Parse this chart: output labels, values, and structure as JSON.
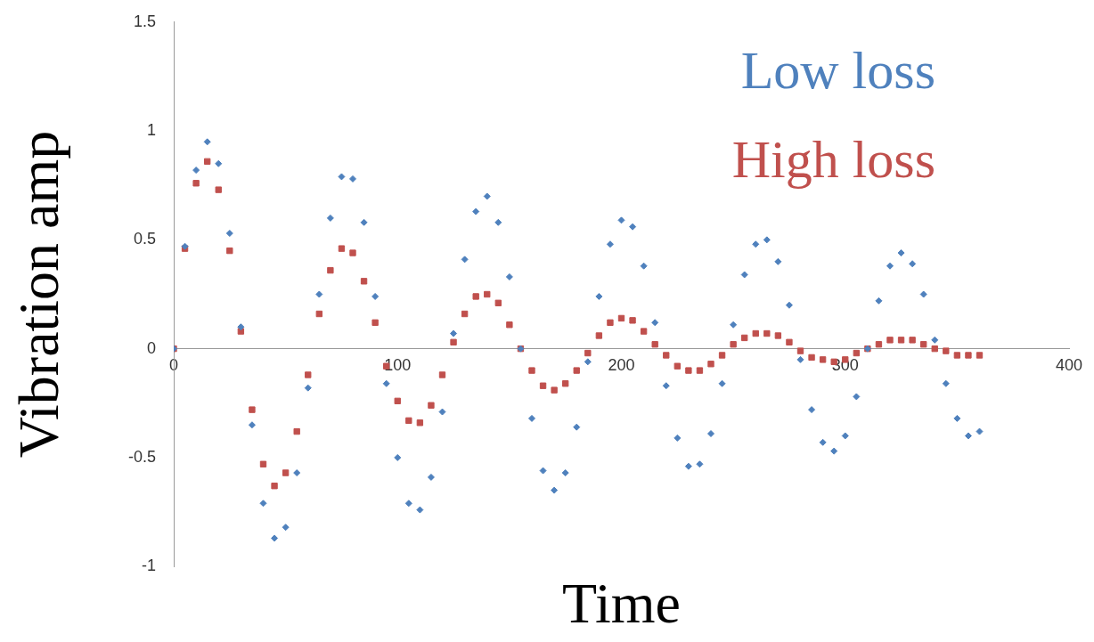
{
  "chart_data": {
    "type": "scatter",
    "xlabel": "Time",
    "ylabel": "Vibration amp",
    "xlim": [
      0,
      400
    ],
    "xticks": [
      0,
      100,
      200,
      300,
      400
    ],
    "ylim": [
      -1,
      1.5
    ],
    "yticks": [
      -1,
      -0.5,
      0,
      0.5,
      1,
      1.5
    ],
    "grid": false,
    "legend": "top right",
    "x": [
      0,
      5,
      10,
      15,
      20,
      25,
      30,
      35,
      40,
      45,
      50,
      55,
      60,
      65,
      70,
      75,
      80,
      85,
      90,
      95,
      100,
      105,
      110,
      115,
      120,
      125,
      130,
      135,
      140,
      145,
      150,
      155,
      160,
      165,
      170,
      175,
      180,
      185,
      190,
      195,
      200,
      205,
      210,
      215,
      220,
      225,
      230,
      235,
      240,
      245,
      250,
      255,
      260,
      265,
      270,
      275,
      280,
      285,
      290,
      295,
      300,
      305,
      310,
      315,
      320,
      325,
      330,
      335,
      340,
      345,
      350,
      355,
      360
    ],
    "series": [
      {
        "name": "Low loss",
        "color": "#4f81bd",
        "marker": "diamond",
        "values": [
          0,
          0.47,
          0.82,
          0.95,
          0.85,
          0.53,
          0.1,
          -0.35,
          -0.71,
          -0.87,
          -0.82,
          -0.57,
          -0.18,
          0.25,
          0.6,
          0.79,
          0.78,
          0.58,
          0.24,
          -0.16,
          -0.5,
          -0.71,
          -0.74,
          -0.59,
          -0.29,
          0.07,
          0.41,
          0.63,
          0.7,
          0.58,
          0.33,
          0,
          -0.32,
          -0.56,
          -0.65,
          -0.57,
          -0.36,
          -0.06,
          0.24,
          0.48,
          0.59,
          0.56,
          0.38,
          0.12,
          -0.17,
          -0.41,
          -0.54,
          -0.53,
          -0.39,
          -0.16,
          0.11,
          0.34,
          0.48,
          0.5,
          0.4,
          0.2,
          -0.05,
          -0.28,
          -0.43,
          -0.47,
          -0.4,
          -0.22,
          0,
          0.22,
          0.38,
          0.44,
          0.39,
          0.25,
          0.04,
          -0.16,
          -0.32,
          -0.4,
          -0.38
        ]
      },
      {
        "name": "High loss",
        "color": "#c0504d",
        "marker": "square",
        "values": [
          0,
          0.46,
          0.76,
          0.86,
          0.73,
          0.45,
          0.08,
          -0.28,
          -0.53,
          -0.63,
          -0.57,
          -0.38,
          -0.12,
          0.16,
          0.36,
          0.46,
          0.44,
          0.31,
          0.12,
          -0.08,
          -0.24,
          -0.33,
          -0.34,
          -0.26,
          -0.12,
          0.03,
          0.16,
          0.24,
          0.25,
          0.21,
          0.11,
          0,
          -0.1,
          -0.17,
          -0.19,
          -0.16,
          -0.1,
          -0.02,
          0.06,
          0.12,
          0.14,
          0.13,
          0.08,
          0.02,
          -0.03,
          -0.08,
          -0.1,
          -0.1,
          -0.07,
          -0.03,
          0.02,
          0.05,
          0.07,
          0.07,
          0.06,
          0.03,
          -0.01,
          -0.04,
          -0.05,
          -0.06,
          -0.05,
          -0.02,
          0,
          0.02,
          0.04,
          0.04,
          0.04,
          0.02,
          0,
          -0.01,
          -0.03,
          -0.03,
          -0.03
        ]
      }
    ]
  }
}
